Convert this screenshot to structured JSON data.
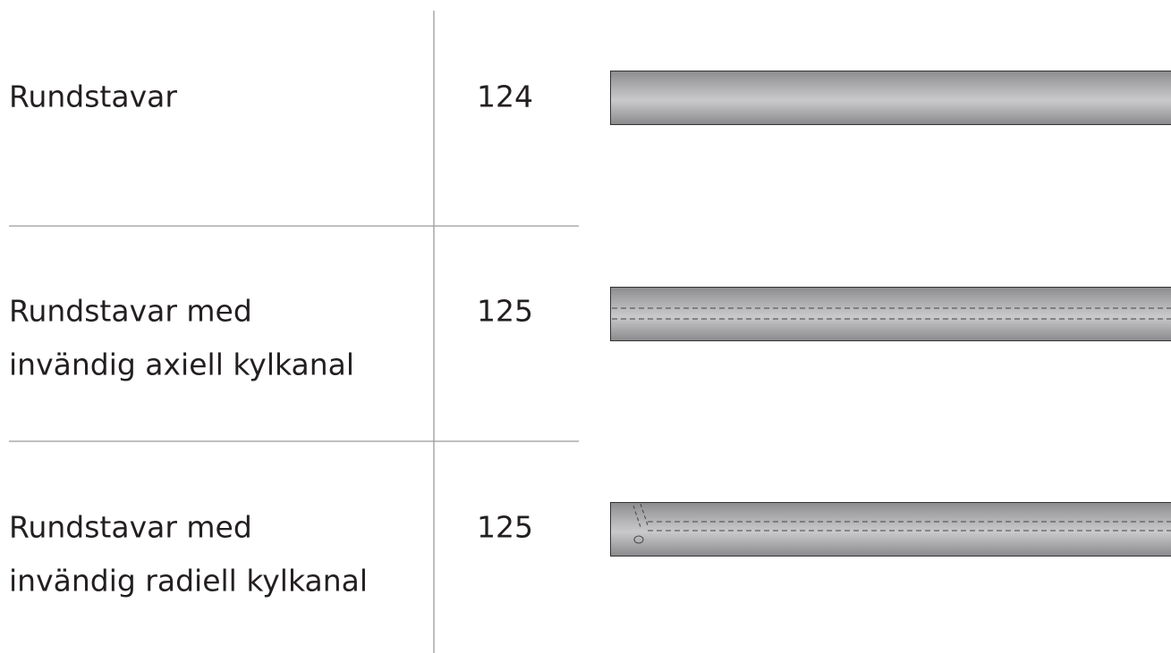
{
  "table": {
    "rows": [
      {
        "name": [
          "Rundstavar"
        ],
        "page": 124
      },
      {
        "name": [
          "Rundstavar med",
          "invändig axiell kylkanal"
        ],
        "page": 125
      },
      {
        "name": [
          "Rundstavar med",
          "invändig radiell kylkanal"
        ],
        "page": 125
      }
    ]
  }
}
